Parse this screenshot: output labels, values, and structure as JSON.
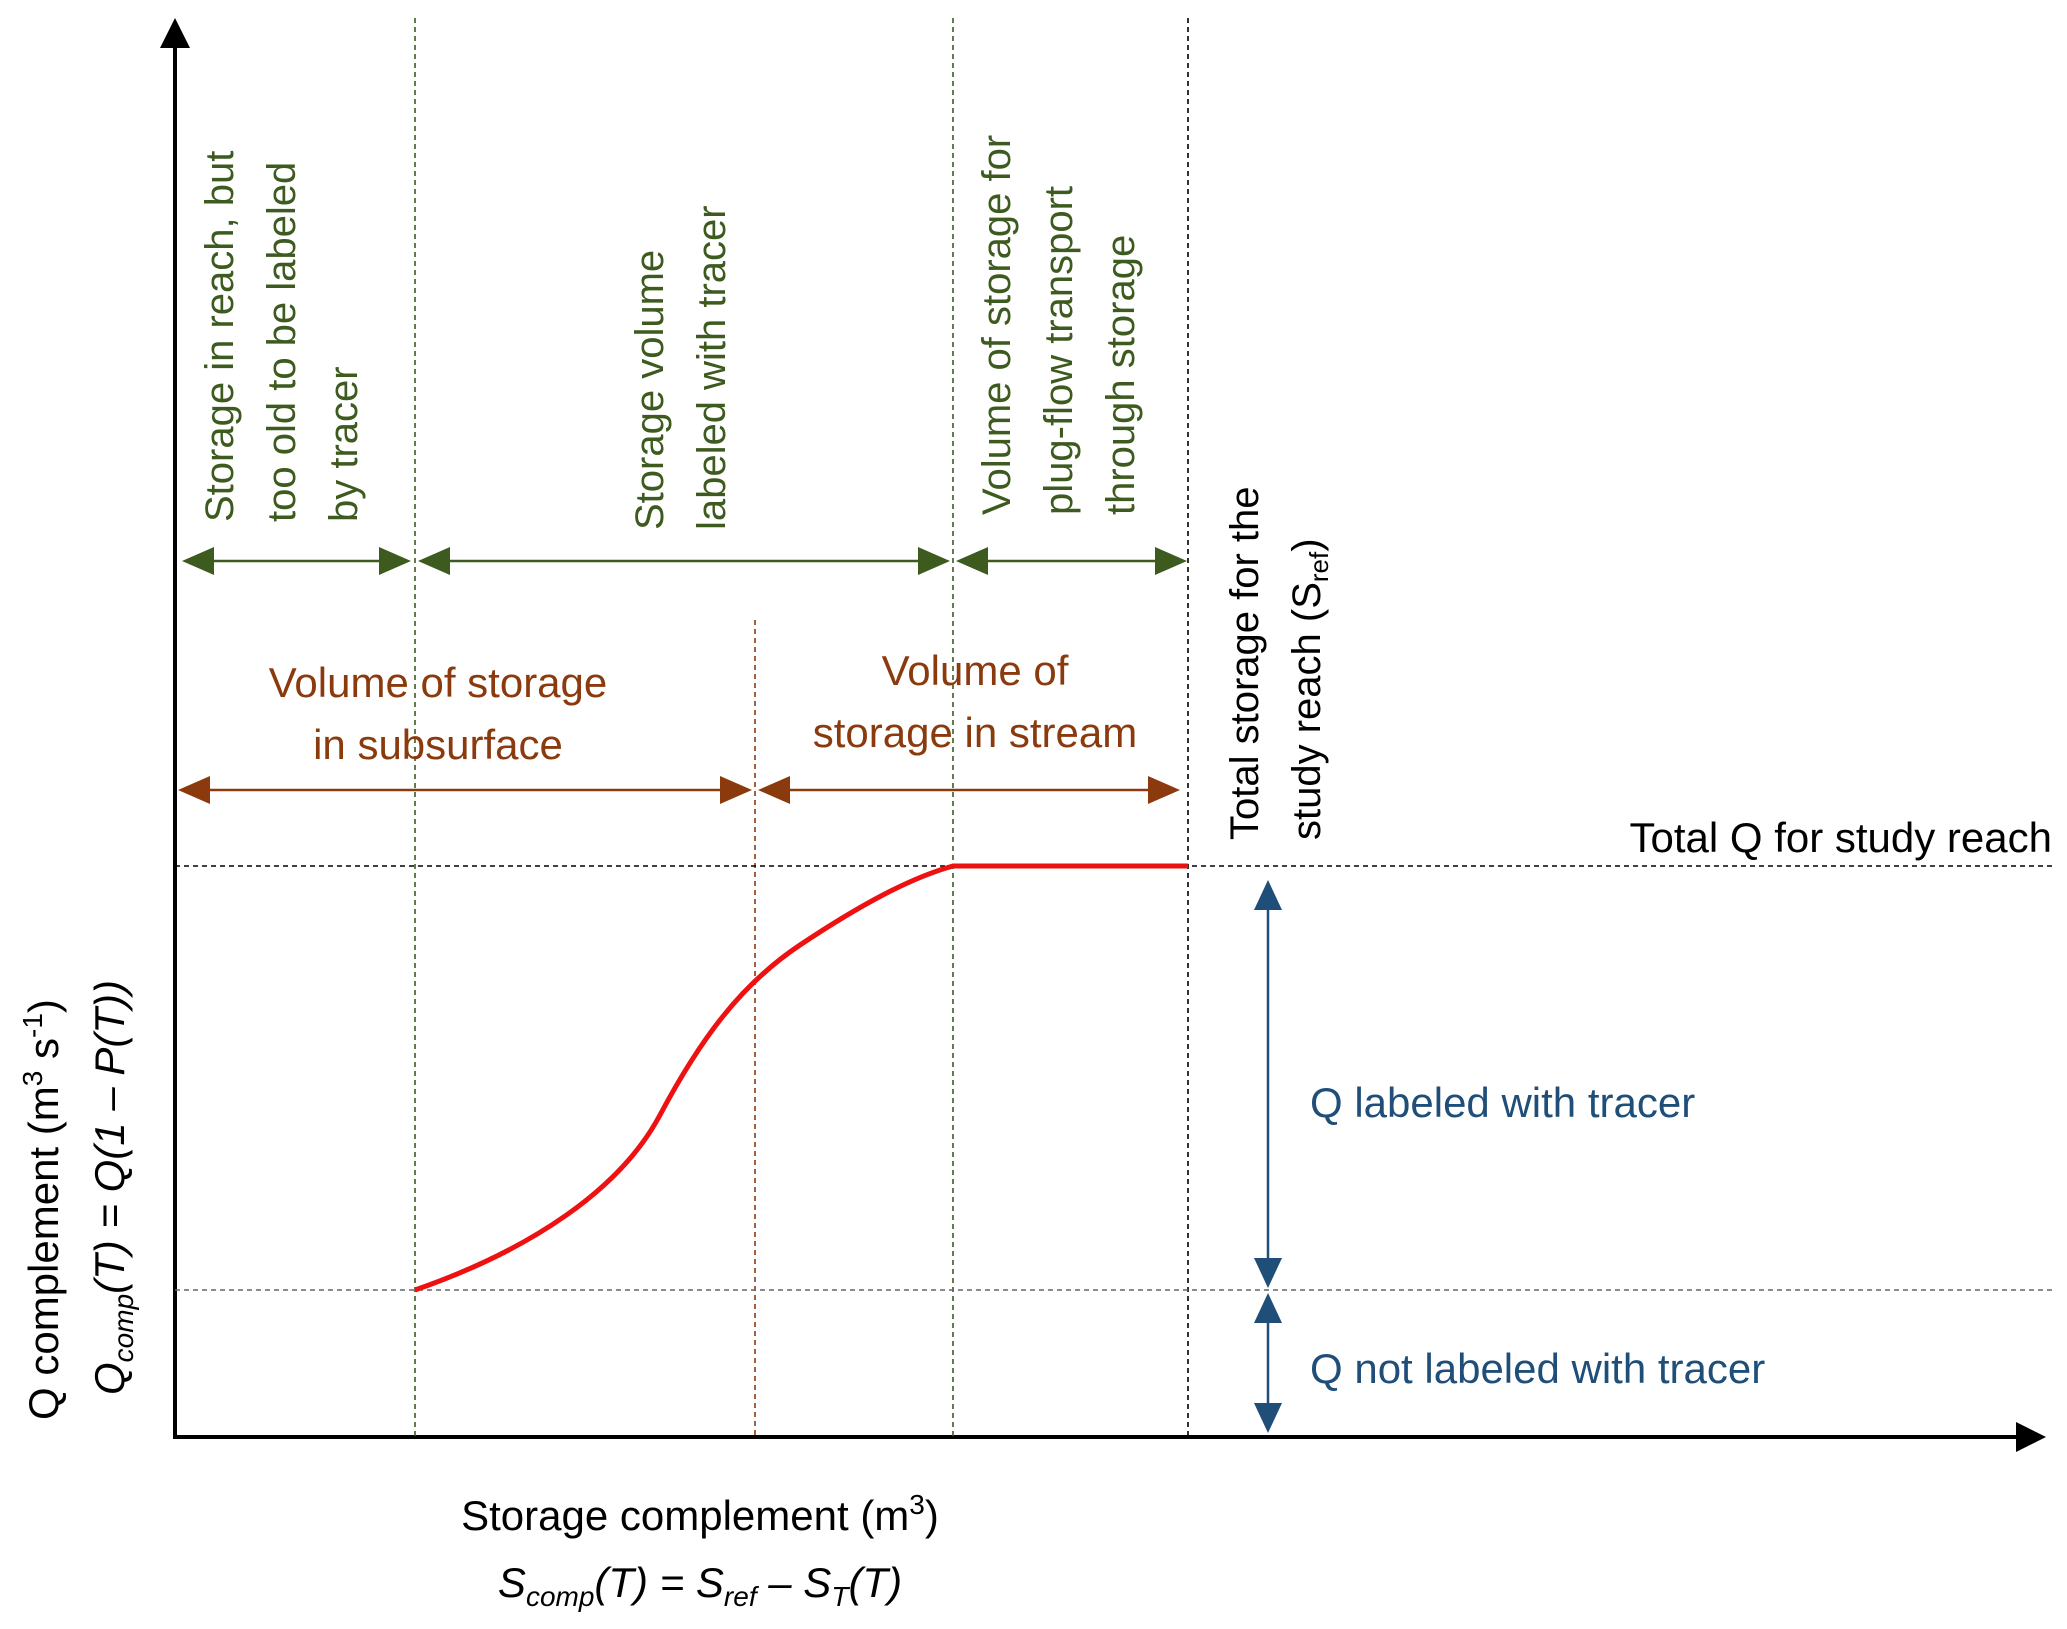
{
  "axes": {
    "x": {
      "label_line1": "Storage complement (m",
      "label_line1_sup": "3",
      "label_line1_end": ")",
      "eq_S": "S",
      "eq_comp_sub": "comp",
      "eq_mid": "(T) = S",
      "eq_ref_sub": "ref",
      "eq_dash": " – S",
      "eq_T_sub": "T",
      "eq_end": "(T)"
    },
    "y": {
      "label_line1": "Q complement  (m",
      "label_line1_sup": "3",
      "label_line1_mid": " s",
      "label_line1_sup2": "-1",
      "label_line1_end": ")",
      "eq_Q": "Q",
      "eq_comp_sub": "comp",
      "eq_rest": "(T) = Q(1 – P(T))"
    }
  },
  "top_regions": [
    {
      "lines": [
        "Storage in reach, but",
        "too old to be labeled",
        "by tracer"
      ]
    },
    {
      "lines": [
        "Storage volume",
        "labeled with tracer"
      ]
    },
    {
      "lines": [
        "Volume of storage for",
        "plug-flow transport",
        "through storage"
      ]
    }
  ],
  "total_storage": {
    "line1": "Total storage for the",
    "line2_pre": "study reach (S",
    "line2_sub": "ref",
    "line2_end": ")"
  },
  "mid_regions": [
    {
      "lines": [
        "Volume of storage",
        "in subsurface"
      ]
    },
    {
      "lines": [
        "Volume of",
        "storage in stream"
      ]
    }
  ],
  "q_labels": {
    "total": "Total Q for study reach",
    "labeled": "Q labeled with tracer",
    "not_labeled": "Q not labeled with tracer"
  },
  "colors": {
    "green": "#3d5a1f",
    "brown": "#8b3a0e",
    "blue": "#1f4e79",
    "curve": "#ee1111",
    "axis": "#000000"
  }
}
